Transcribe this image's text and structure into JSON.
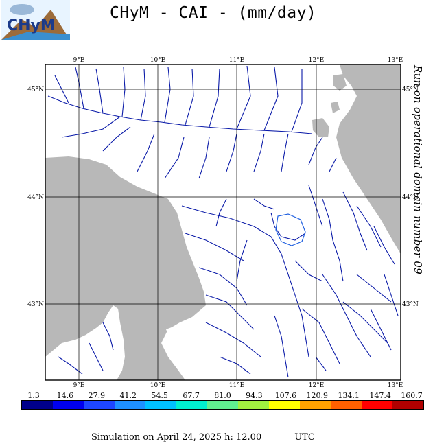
{
  "title": "CHyM - CAI - (mm/day)",
  "logo": {
    "text": "CHyM"
  },
  "side_note": "Run on operational domain number 09",
  "map": {
    "lon_labels": [
      "9°E",
      "10°E",
      "11°E",
      "12°E",
      "13°E"
    ],
    "lat_labels": [
      "45°N",
      "44°N",
      "43°N"
    ],
    "colors": {
      "land": "#ffffff",
      "sea": "#b8b8b8",
      "river": "#0a1aa8",
      "border": "#000000"
    }
  },
  "colorbar": {
    "values": [
      "1.3",
      "14.6",
      "27.9",
      "41.2",
      "54.5",
      "67.7",
      "81.0",
      "94.3",
      "107.6",
      "120.9",
      "134.1",
      "147.4",
      "160.7"
    ],
    "colors": [
      "#00008b",
      "#0000ee",
      "#1e46ff",
      "#1e90ff",
      "#00c0ff",
      "#00f0d0",
      "#60f090",
      "#a0f040",
      "#ffff00",
      "#ffa000",
      "#ff6000",
      "#ff0000",
      "#b00000"
    ]
  },
  "footer": {
    "text": "Simulation on April 24, 2025 h: 12.00",
    "tz": "UTC"
  }
}
